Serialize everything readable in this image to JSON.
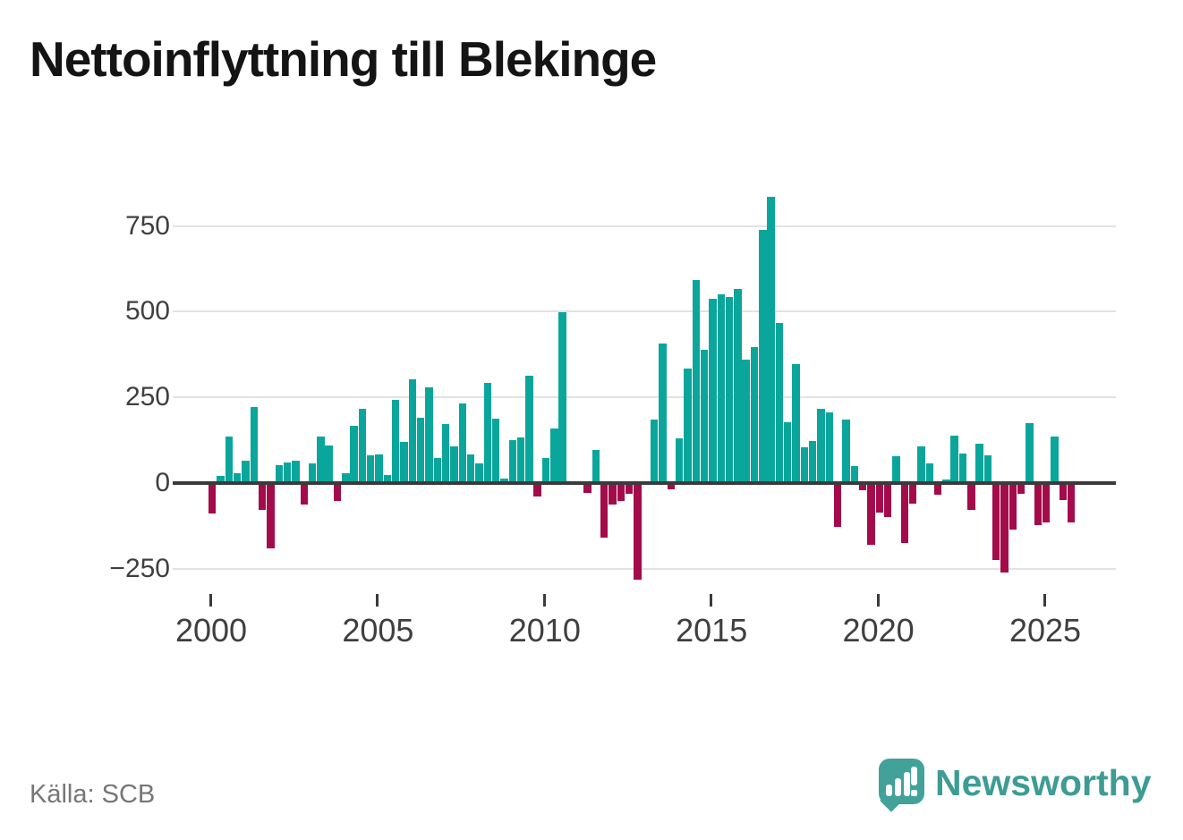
{
  "title": "Nettoinflyttning till Blekinge",
  "source": "Källa: SCB",
  "brand": {
    "name": "Newsworthy",
    "icon": "newsworthy-speech-bubble-bar-chart-icon"
  },
  "colors": {
    "positive_bar": "#0ba69b",
    "negative_bar": "#a30b4b",
    "gridline": "#e2e2e2",
    "axis_line": "#3b3b3b",
    "title_text": "#141414",
    "tick_text": "#3f3f3f",
    "source_text": "#767676",
    "brand_teal": "#3d9c93"
  },
  "chart_data": {
    "type": "bar",
    "title": "Nettoinflyttning till Blekinge",
    "frequency": "quarterly",
    "x_start": "2000-Q1",
    "x_end": "2025-Q4",
    "ylim": [
      -300,
      870
    ],
    "grid": "horizontal",
    "legend": "none",
    "y_ticks": [
      {
        "label": "750",
        "value": 750
      },
      {
        "label": "500",
        "value": 500
      },
      {
        "label": "250",
        "value": 250
      },
      {
        "label": "0",
        "value": 0
      },
      {
        "label": "−250",
        "value": -250
      }
    ],
    "x_ticks": [
      {
        "label": "2000",
        "year": 2000
      },
      {
        "label": "2005",
        "year": 2005
      },
      {
        "label": "2010",
        "year": 2010
      },
      {
        "label": "2015",
        "year": 2015
      },
      {
        "label": "2020",
        "year": 2020
      },
      {
        "label": "2025",
        "year": 2025
      }
    ],
    "values": [
      -90,
      22,
      135,
      29,
      65,
      222,
      -77,
      -190,
      52,
      60,
      64,
      -63,
      57,
      136,
      109,
      -52,
      29,
      166,
      216,
      80,
      83,
      24,
      243,
      119,
      302,
      191,
      278,
      74,
      172,
      107,
      232,
      83,
      57,
      291,
      187,
      13,
      124,
      133,
      313,
      -39,
      72,
      159,
      497,
      0,
      0,
      -30,
      96,
      -159,
      -62,
      -53,
      -32,
      -283,
      0,
      185,
      406,
      -17,
      131,
      333,
      593,
      390,
      537,
      550,
      543,
      567,
      361,
      396,
      739,
      835,
      466,
      177,
      348,
      104,
      123,
      216,
      206,
      -129,
      184,
      50,
      -20,
      -181,
      -87,
      -98,
      78,
      -174,
      -61,
      106,
      57,
      -33,
      10,
      139,
      87,
      -79,
      116,
      81,
      -225,
      -261,
      -135,
      -32,
      176,
      -122,
      -116,
      135,
      -50,
      -114
    ]
  }
}
